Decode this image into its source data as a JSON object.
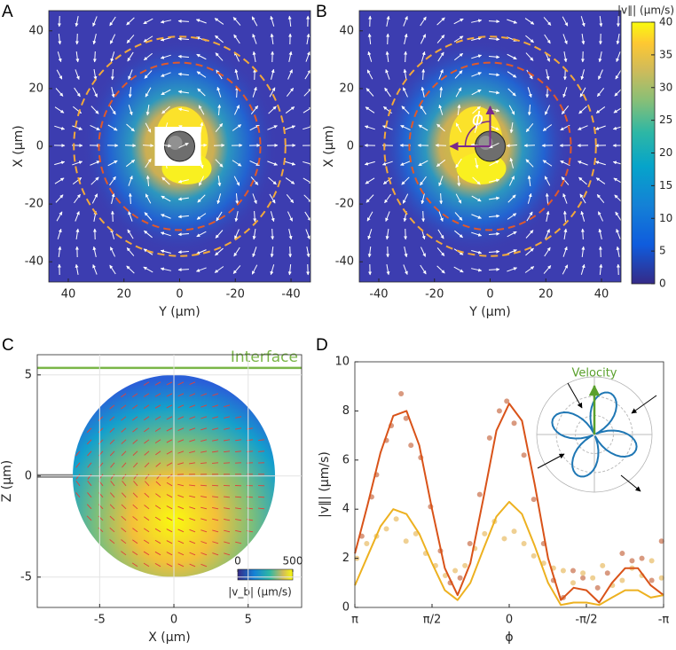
{
  "chart_data": [
    {
      "type": "heatmap",
      "panel_label": "A",
      "xlabel": "Y (μm)",
      "ylabel": "X (μm)",
      "xlim": [
        47,
        -47
      ],
      "xticks": [
        40,
        20,
        0,
        -20,
        -40
      ],
      "ylim": [
        -47,
        47
      ],
      "yticks": [
        -40,
        -20,
        0,
        20,
        40
      ],
      "rings": [
        {
          "radius": 38,
          "color": "#f2a93b"
        },
        {
          "radius": 29,
          "color": "#e0592a"
        }
      ]
    },
    {
      "type": "heatmap",
      "panel_label": "B",
      "xlabel": "Y (μm)",
      "ylabel": "X (μm)",
      "xlim": [
        -47,
        47
      ],
      "xticks": [
        -40,
        -20,
        0,
        20,
        40
      ],
      "ylim": [
        -47,
        47
      ],
      "yticks": [
        -40,
        -20,
        0,
        20,
        40
      ],
      "rings": [
        {
          "radius": 38,
          "color": "#f2a93b"
        },
        {
          "radius": 29,
          "color": "#e0592a"
        }
      ],
      "annotation": "ϕ",
      "colorbar": {
        "title": "|v∥| (μm/s)",
        "clim": [
          0,
          40
        ],
        "ticks": [
          0,
          5,
          10,
          15,
          20,
          25,
          30,
          35,
          40
        ]
      }
    },
    {
      "type": "sphere",
      "panel_label": "C",
      "xlabel": "X (μm)",
      "ylabel": "Z (μm)",
      "xlim": [
        -9.2,
        8.6
      ],
      "xticks": [
        -5,
        0,
        5
      ],
      "ylim": [
        -6.5,
        6
      ],
      "yticks": [
        -5,
        0,
        5
      ],
      "grid": true,
      "radius": 5,
      "interface": {
        "label": "Interface",
        "z": 5.35,
        "color": "#7ab648"
      },
      "colorbar": {
        "title": "|v_b| (μm/s)",
        "clim": [
          0,
          500
        ],
        "ticks": [
          0,
          500
        ]
      }
    },
    {
      "type": "line",
      "panel_label": "D",
      "xlabel": "ϕ",
      "ylabel": "|v∥| (μm/s)",
      "xlim": [
        3.1416,
        -3.1416
      ],
      "xticks": [
        {
          "value": 3.1416,
          "label": "π"
        },
        {
          "value": 1.5708,
          "label": "π/2"
        },
        0,
        {
          "value": -1.5708,
          "label": "-π/2"
        },
        {
          "value": -3.1416,
          "label": "-π"
        }
      ],
      "ylim": [
        0,
        10
      ],
      "yticks": [
        0,
        2,
        4,
        6,
        8,
        10
      ],
      "series": [
        {
          "kind": "scatter",
          "color": "#d99a80",
          "x": [
            3.0,
            2.8,
            2.7,
            2.5,
            2.4,
            2.2,
            2.1,
            2.0,
            1.8,
            1.6,
            1.4,
            1.2,
            1.0,
            0.8,
            0.6,
            0.4,
            0.2,
            0.05,
            -0.1,
            -0.3,
            -0.5,
            -0.7,
            -0.9,
            -1.1,
            -1.3,
            -1.5,
            -1.8,
            -2.0,
            -2.3,
            -2.5,
            -2.7,
            -2.9,
            -3.1
          ],
          "values": [
            2.9,
            4.5,
            5.4,
            6.8,
            7.4,
            8.7,
            7.7,
            6.6,
            6.1,
            4.1,
            2.3,
            1.0,
            1.2,
            2.6,
            4.6,
            6.9,
            8.0,
            8.4,
            7.5,
            6.2,
            4.4,
            2.6,
            1.1,
            0.4,
            1.5,
            1.2,
            0.8,
            1.4,
            2.2,
            1.9,
            2.0,
            1.1,
            2.7
          ]
        },
        {
          "kind": "scatter",
          "color": "#efd093",
          "x": [
            3.1,
            2.9,
            2.7,
            2.5,
            2.3,
            2.1,
            1.9,
            1.7,
            1.5,
            1.3,
            1.1,
            0.9,
            0.7,
            0.5,
            0.3,
            0.1,
            -0.1,
            -0.3,
            -0.5,
            -0.7,
            -0.9,
            -1.1,
            -1.3,
            -1.5,
            -1.7,
            -1.9,
            -2.1,
            -2.3,
            -2.5,
            -2.7,
            -2.9,
            -3.1
          ],
          "values": [
            2.0,
            2.6,
            2.9,
            3.2,
            3.6,
            2.7,
            3.0,
            2.2,
            1.7,
            1.3,
            1.5,
            1.7,
            2.4,
            3.0,
            3.5,
            2.8,
            3.1,
            2.6,
            2.1,
            1.8,
            1.6,
            1.5,
            1.0,
            1.4,
            1.2,
            1.7,
            0.9,
            1.1,
            1.6,
            1.3,
            1.9,
            1.2
          ]
        },
        {
          "kind": "line",
          "color": "#d95319",
          "x": [
            3.14,
            2.88,
            2.62,
            2.36,
            2.09,
            1.83,
            1.57,
            1.31,
            1.05,
            0.79,
            0.52,
            0.26,
            0,
            -0.26,
            -0.52,
            -0.79,
            -1.05,
            -1.31,
            -1.57,
            -1.83,
            -2.09,
            -2.36,
            -2.62,
            -2.88,
            -3.14
          ],
          "values": [
            2.2,
            4.2,
            6.3,
            7.8,
            8.0,
            6.6,
            4.0,
            1.6,
            0.5,
            1.8,
            4.5,
            7.2,
            8.3,
            7.6,
            5.0,
            2.0,
            0.3,
            0.8,
            0.7,
            0.2,
            1.0,
            1.6,
            1.6,
            0.9,
            0.5
          ]
        },
        {
          "kind": "line",
          "color": "#edb120",
          "x": [
            3.14,
            2.88,
            2.62,
            2.36,
            2.09,
            1.83,
            1.57,
            1.31,
            1.05,
            0.79,
            0.52,
            0.26,
            0,
            -0.26,
            -0.52,
            -0.79,
            -1.05,
            -1.31,
            -1.57,
            -1.83,
            -2.09,
            -2.36,
            -2.62,
            -2.88,
            -3.14
          ],
          "values": [
            0.9,
            2.1,
            3.3,
            4.0,
            3.8,
            3.0,
            1.8,
            0.7,
            0.3,
            1.0,
            2.4,
            3.7,
            4.3,
            3.8,
            2.5,
            1.0,
            0.1,
            0.2,
            0.2,
            0.1,
            0.4,
            0.7,
            0.7,
            0.4,
            0.5
          ]
        }
      ],
      "inset": {
        "label": "Velocity"
      }
    }
  ]
}
